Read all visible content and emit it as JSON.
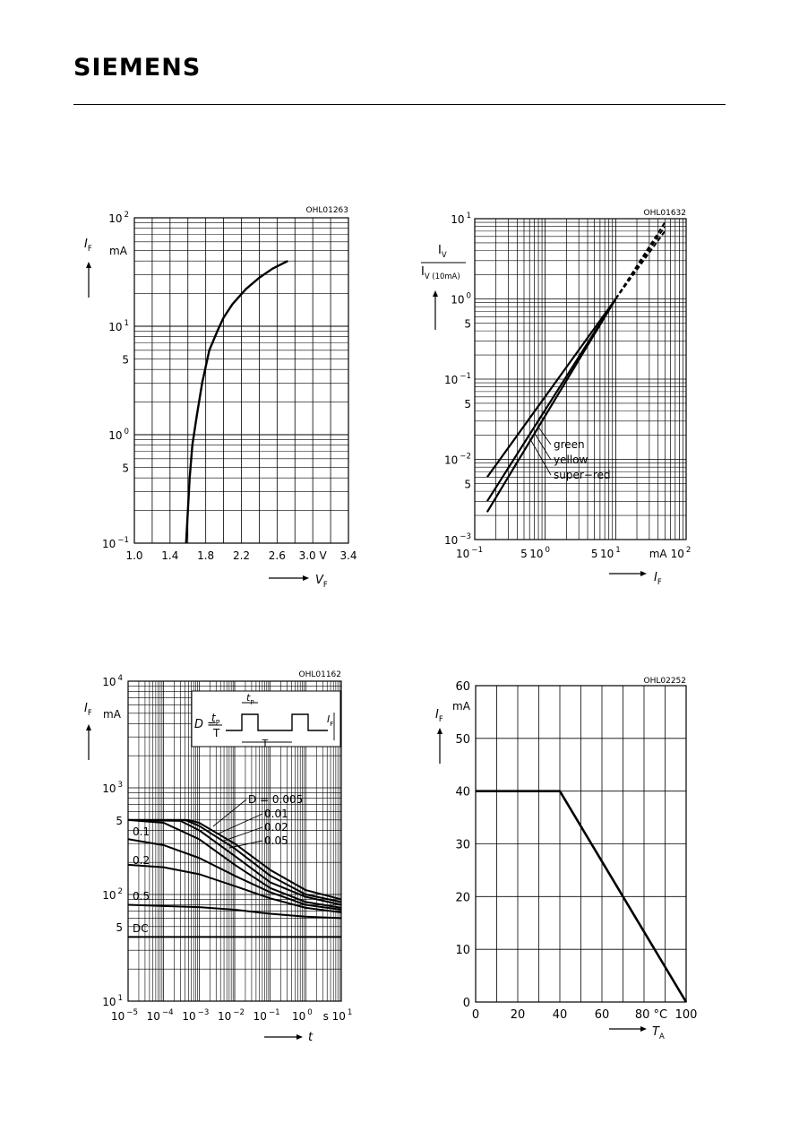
{
  "header": {
    "brand": "SIEMENS"
  },
  "chart_data": [
    {
      "type": "line",
      "code": "OHL01263",
      "ylabel": "I",
      "ylabel_sub": "F",
      "yunit": "mA",
      "xlabel": "V",
      "xlabel_sub": "F",
      "xlim": [
        1.0,
        3.4
      ],
      "ylim": [
        0.1,
        100
      ],
      "yscale": "log",
      "x_ticks": [
        "1.0",
        "1.4",
        "1.8",
        "2.2",
        "2.6",
        "3.0 V",
        "3.4"
      ],
      "y_ticks": [
        {
          "base": "10",
          "exp": "2"
        },
        {
          "base": "10",
          "exp": "1"
        },
        {
          "base": "5",
          "exp": ""
        },
        {
          "base": "10",
          "exp": "0"
        },
        {
          "base": "5",
          "exp": ""
        },
        {
          "base": "10",
          "exp": "−1"
        }
      ],
      "series": [
        {
          "x": [
            1.58,
            1.6,
            1.62,
            1.65,
            1.7,
            1.76,
            1.84,
            1.93,
            2.0,
            2.1,
            2.25,
            2.4,
            2.55,
            2.72
          ],
          "y": [
            0.1,
            0.2,
            0.4,
            0.8,
            1.5,
            3,
            6,
            9,
            12,
            16,
            22,
            28,
            34,
            40
          ]
        }
      ]
    },
    {
      "type": "line",
      "code": "OHL01632",
      "ylabel_num": "I",
      "ylabel_num_sub": "V",
      "ylabel_den": "I",
      "ylabel_den_sub": "V (10mA)",
      "xlabel": "I",
      "xlabel_sub": "F",
      "xlim": [
        0.1,
        100
      ],
      "ylim": [
        0.001,
        10
      ],
      "xscale": "log",
      "yscale": "log",
      "x_ticks": [
        {
          "base": "10",
          "exp": "−1"
        },
        {
          "base": "5",
          "exp": ""
        },
        {
          "base": "10",
          "exp": "0"
        },
        {
          "base": "5",
          "exp": ""
        },
        {
          "base": "10",
          "exp": "1"
        },
        {
          "base": "mA",
          "exp": ""
        },
        {
          "base": "10",
          "exp": "2"
        }
      ],
      "y_ticks": [
        {
          "base": "10",
          "exp": "1"
        },
        {
          "base": "10",
          "exp": "0"
        },
        {
          "base": "5",
          "exp": ""
        },
        {
          "base": "10",
          "exp": "−1"
        },
        {
          "base": "5",
          "exp": ""
        },
        {
          "base": "10",
          "exp": "−2"
        },
        {
          "base": "5",
          "exp": ""
        },
        {
          "base": "10",
          "exp": "−3"
        }
      ],
      "series": [
        {
          "name": "green",
          "x": [
            0.15,
            10,
            50
          ],
          "y": [
            0.006,
            1.0,
            7.0
          ]
        },
        {
          "name": "yellow",
          "x": [
            0.15,
            10,
            50
          ],
          "y": [
            0.003,
            1.0,
            8.0
          ]
        },
        {
          "name": "super−red",
          "x": [
            0.15,
            10,
            50
          ],
          "y": [
            0.0022,
            1.0,
            9.0
          ]
        }
      ]
    },
    {
      "type": "line",
      "code": "OHL01162",
      "ylabel": "I",
      "ylabel_sub": "F",
      "yunit": "mA",
      "xlabel": "t",
      "xlim": [
        1e-05,
        10
      ],
      "ylim": [
        10,
        10000
      ],
      "xscale": "log",
      "yscale": "log",
      "x_ticks": [
        {
          "base": "10",
          "exp": "−5"
        },
        {
          "base": "10",
          "exp": "−4"
        },
        {
          "base": "10",
          "exp": "−3"
        },
        {
          "base": "10",
          "exp": "−2"
        },
        {
          "base": "10",
          "exp": "−1"
        },
        {
          "base": "10",
          "exp": "0"
        },
        {
          "base": "s 10",
          "exp": "1"
        }
      ],
      "y_ticks": [
        {
          "base": "10",
          "exp": "4"
        },
        {
          "base": "10",
          "exp": "3"
        },
        {
          "base": "5",
          "exp": ""
        },
        {
          "base": "10",
          "exp": "2"
        },
        {
          "base": "5",
          "exp": ""
        },
        {
          "base": "10",
          "exp": "1"
        }
      ],
      "inset": {
        "formula_lhs": "D =",
        "tp": "t",
        "tp_sub": "P",
        "T": "T",
        "IF": "I",
        "IF_sub": "F"
      },
      "series": [
        {
          "name": "D = 0.005",
          "x": [
            1e-05,
            0.0005,
            0.001,
            0.01,
            0.1,
            1,
            10
          ],
          "y": [
            500,
            500,
            470,
            300,
            170,
            110,
            90
          ]
        },
        {
          "name": "0.01",
          "x": [
            1e-05,
            0.0004,
            0.001,
            0.01,
            0.1,
            1,
            10
          ],
          "y": [
            500,
            500,
            440,
            270,
            150,
            100,
            85
          ]
        },
        {
          "name": "0.02",
          "x": [
            1e-05,
            0.0003,
            0.001,
            0.01,
            0.1,
            1,
            10
          ],
          "y": [
            500,
            490,
            400,
            230,
            130,
            95,
            80
          ]
        },
        {
          "name": "0.05",
          "x": [
            1e-05,
            0.0001,
            0.001,
            0.01,
            0.1,
            1,
            10
          ],
          "y": [
            500,
            470,
            330,
            190,
            115,
            85,
            75
          ]
        },
        {
          "name": "0.1",
          "x": [
            1e-05,
            0.0001,
            0.001,
            0.01,
            0.1,
            1,
            10
          ],
          "y": [
            330,
            290,
            220,
            150,
            105,
            80,
            72
          ]
        },
        {
          "name": "0.2",
          "x": [
            1e-05,
            0.0001,
            0.001,
            0.01,
            0.1,
            1,
            10
          ],
          "y": [
            190,
            180,
            155,
            120,
            92,
            75,
            68
          ]
        },
        {
          "name": "0.5",
          "x": [
            1e-05,
            0.0001,
            0.001,
            0.01,
            0.1,
            1,
            10
          ],
          "y": [
            80,
            78,
            76,
            72,
            66,
            62,
            60
          ]
        },
        {
          "name": "DC",
          "x": [
            1e-05,
            10
          ],
          "y": [
            40,
            40
          ]
        }
      ]
    },
    {
      "type": "line",
      "code": "OHL02252",
      "ylabel": "I",
      "ylabel_sub": "F",
      "yunit": "mA",
      "xlabel": "T",
      "xlabel_sub": "A",
      "xlim": [
        0,
        100
      ],
      "ylim": [
        0,
        60
      ],
      "x_ticks": [
        "0",
        "20",
        "40",
        "60",
        "80 °C",
        "100"
      ],
      "y_ticks": [
        "60",
        "50",
        "40",
        "30",
        "20",
        "10",
        "0"
      ],
      "series": [
        {
          "x": [
            0,
            40,
            100
          ],
          "y": [
            40,
            40,
            0
          ]
        }
      ]
    }
  ]
}
